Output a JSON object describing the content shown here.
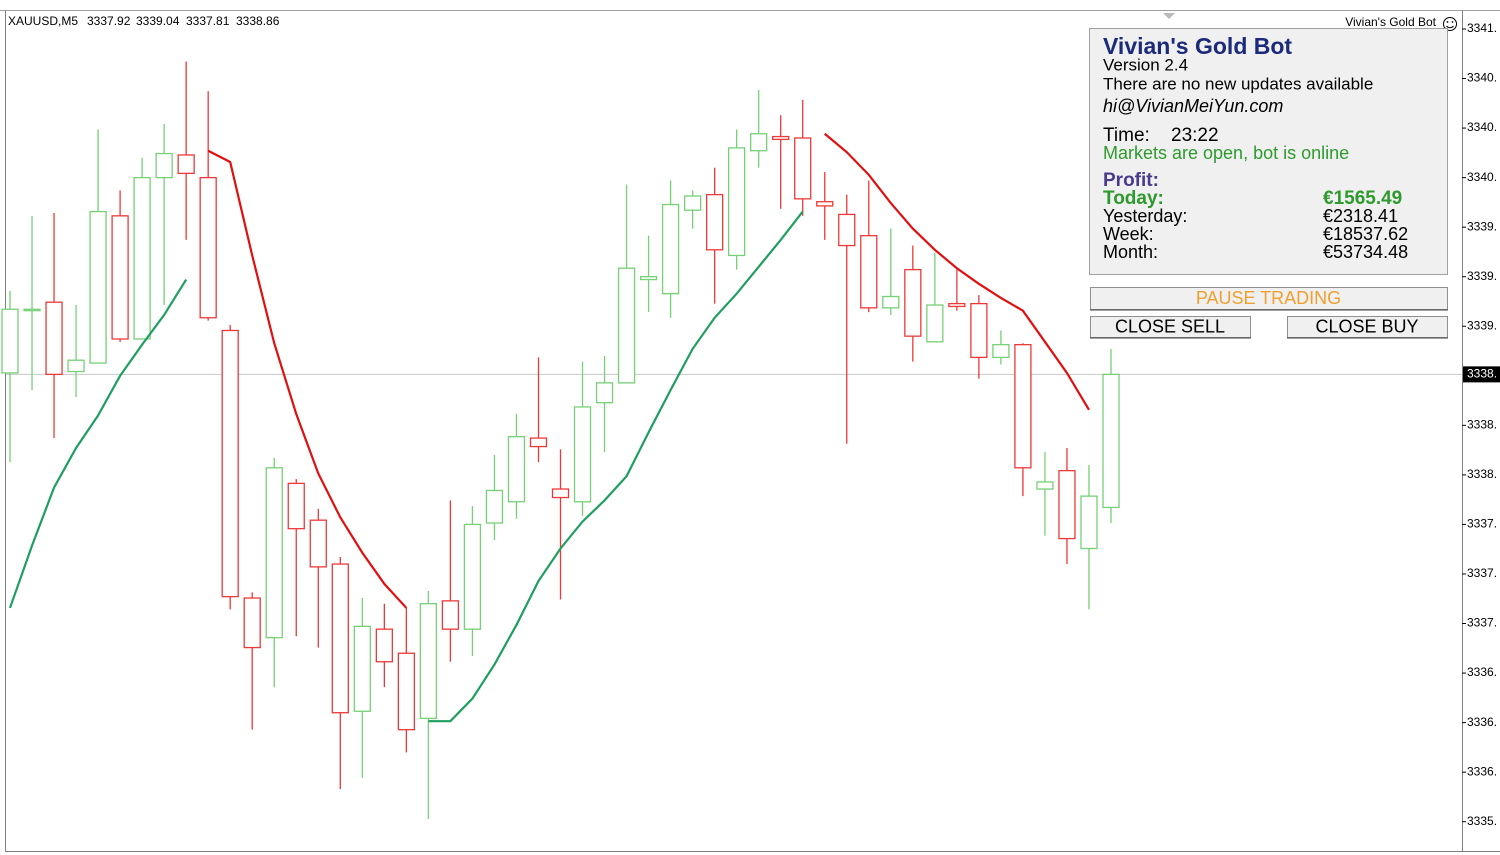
{
  "header": {
    "symbol": "XAUUSD,M5",
    "ohlc": [
      3337.92,
      3339.04,
      3337.81,
      3338.86
    ]
  },
  "expert_label": "Vivian's Gold Bot",
  "chart_data": {
    "type": "candlestick",
    "up_color": "#76d076",
    "down_color": "#ee3838",
    "ylim": [
      3335.5,
      3341.42
    ],
    "yticks": [
      {
        "value": 3341.3,
        "label": "3341."
      },
      {
        "value": 3340.95,
        "label": "3340."
      },
      {
        "value": 3340.6,
        "label": "3340."
      },
      {
        "value": 3340.25,
        "label": "3340."
      },
      {
        "value": 3339.9,
        "label": "3339."
      },
      {
        "value": 3339.55,
        "label": "3339."
      },
      {
        "value": 3339.2,
        "label": "3339."
      },
      {
        "value": 3338.5,
        "label": "3338."
      },
      {
        "value": 3338.15,
        "label": "3338."
      },
      {
        "value": 3337.8,
        "label": "3337."
      },
      {
        "value": 3337.45,
        "label": "3337."
      },
      {
        "value": 3337.1,
        "label": "3337."
      },
      {
        "value": 3336.75,
        "label": "3336."
      },
      {
        "value": 3336.4,
        "label": "3336."
      },
      {
        "value": 3336.05,
        "label": "3336."
      },
      {
        "value": 3335.7,
        "label": "3335."
      }
    ],
    "current_price": {
      "value": 3338.86,
      "label": "3338."
    },
    "open": [
      3338.87,
      3339.31,
      3339.37,
      3338.88,
      3338.94,
      3339.98,
      3339.11,
      3340.25,
      3340.41,
      3340.25,
      3339.17,
      3337.28,
      3337.0,
      3338.09,
      3337.83,
      3337.52,
      3336.48,
      3337.06,
      3336.89,
      3336.43,
      3337.26,
      3337.06,
      3337.81,
      3337.96,
      3338.41,
      3338.05,
      3337.96,
      3338.66,
      3338.8,
      3339.53,
      3339.43,
      3340.02,
      3340.13,
      3339.7,
      3340.44,
      3340.54,
      3340.53,
      3340.08,
      3339.99,
      3339.84,
      3339.33,
      3339.6,
      3339.09,
      3339.36,
      3339.36,
      3338.98,
      3339.07,
      3338.05,
      3338.18,
      3337.63,
      3337.92
    ],
    "high": [
      3339.45,
      3339.98,
      3340.0,
      3339.35,
      3340.59,
      3340.16,
      3340.39,
      3340.63,
      3341.07,
      3340.86,
      3339.21,
      3337.32,
      3338.27,
      3338.12,
      3337.91,
      3337.57,
      3337.28,
      3337.24,
      3337.21,
      3337.33,
      3337.97,
      3337.93,
      3338.29,
      3338.58,
      3338.98,
      3338.33,
      3338.95,
      3338.99,
      3340.2,
      3339.84,
      3340.23,
      3340.16,
      3340.32,
      3340.59,
      3340.87,
      3340.69,
      3340.8,
      3340.29,
      3340.13,
      3340.23,
      3339.89,
      3339.77,
      3339.72,
      3339.6,
      3339.42,
      3339.17,
      3339.08,
      3338.31,
      3338.34,
      3338.22,
      3339.04
    ],
    "low": [
      3338.24,
      3338.75,
      3338.41,
      3338.7,
      3338.94,
      3339.09,
      3339.11,
      3339.35,
      3339.81,
      3339.24,
      3337.2,
      3336.35,
      3336.65,
      3337.01,
      3336.93,
      3335.93,
      3336.01,
      3336.65,
      3336.19,
      3335.72,
      3336.83,
      3336.87,
      3337.69,
      3337.84,
      3338.24,
      3337.27,
      3337.86,
      3338.31,
      3338.8,
      3339.3,
      3339.26,
      3339.89,
      3339.36,
      3339.6,
      3340.32,
      3340.03,
      3339.98,
      3339.81,
      3338.37,
      3339.3,
      3339.28,
      3338.95,
      3339.09,
      3339.31,
      3338.83,
      3338.93,
      3338.0,
      3337.72,
      3337.52,
      3337.2,
      3337.81
    ],
    "close": [
      3339.32,
      3339.32,
      3338.86,
      3338.96,
      3340.01,
      3339.11,
      3340.25,
      3340.42,
      3340.28,
      3339.26,
      3337.29,
      3336.93,
      3338.2,
      3337.77,
      3337.5,
      3336.47,
      3337.08,
      3336.83,
      3336.35,
      3337.24,
      3337.06,
      3337.8,
      3338.04,
      3338.42,
      3338.35,
      3337.99,
      3338.63,
      3338.8,
      3339.61,
      3339.55,
      3340.06,
      3340.12,
      3339.74,
      3340.46,
      3340.56,
      3340.52,
      3340.1,
      3340.05,
      3339.77,
      3339.33,
      3339.41,
      3339.13,
      3339.35,
      3339.34,
      3338.98,
      3339.07,
      3338.2,
      3338.1,
      3337.7,
      3338.0,
      3338.86
    ],
    "lines": [
      {
        "color": "#1f9e60",
        "values": [
          3337.21,
          3337.65,
          3338.06,
          3338.34,
          3338.57,
          3338.85,
          3339.07,
          3339.28,
          3339.53,
          null,
          null,
          null,
          null,
          null,
          null,
          null,
          null,
          null,
          null,
          3336.41,
          3336.41,
          3336.57,
          3336.81,
          3337.09,
          3337.4,
          3337.63,
          3337.82,
          3337.97,
          3338.14,
          3338.45,
          3338.75,
          3339.04,
          3339.26,
          3339.43,
          3339.62,
          3339.81,
          3340.01,
          null,
          null,
          null,
          null,
          null,
          null,
          null,
          null,
          null,
          null,
          null,
          null,
          null,
          null
        ]
      },
      {
        "color": "#e01010",
        "values": [
          null,
          null,
          null,
          null,
          null,
          null,
          null,
          null,
          null,
          3340.44,
          3340.36,
          3339.7,
          3339.08,
          3338.58,
          3338.16,
          3337.85,
          3337.6,
          3337.38,
          3337.21,
          null,
          null,
          null,
          null,
          null,
          null,
          null,
          null,
          null,
          null,
          null,
          null,
          null,
          null,
          null,
          null,
          null,
          null,
          3340.56,
          3340.43,
          3340.27,
          3340.07,
          3339.89,
          3339.74,
          3339.61,
          3339.5,
          3339.4,
          3339.31,
          3339.09,
          3338.87,
          3338.61,
          null
        ]
      }
    ]
  },
  "panel": {
    "title": "Vivian's Gold Bot",
    "version": "Version 2.4",
    "update": "There are no new updates available",
    "email": "hi@VivianMeiYun.com",
    "time_label": "Time:",
    "time": "23:22",
    "status": "Markets are open, bot is online",
    "profit_label": "Profit:",
    "rows": [
      [
        "Today:",
        "€1565.49"
      ],
      [
        "Yesterday:",
        "€2318.41"
      ],
      [
        "Week:",
        "€18537.62"
      ],
      [
        "Month:",
        "€53734.48"
      ]
    ],
    "buttons": [
      "PAUSE TRADING",
      "CLOSE SELL",
      "CLOSE BUY"
    ]
  }
}
